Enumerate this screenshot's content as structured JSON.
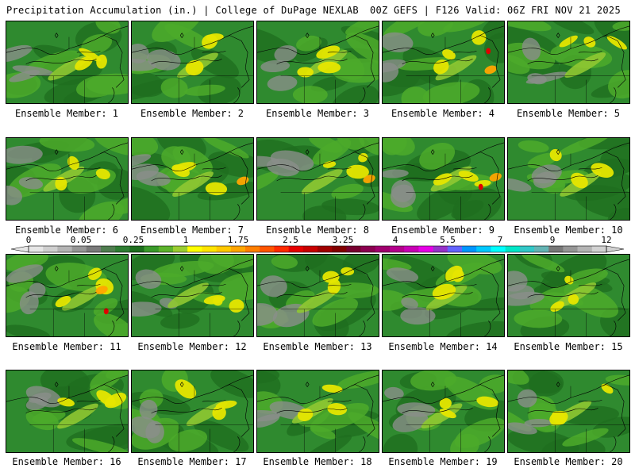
{
  "header": {
    "left_title": "Precipitation Accumulation (in.) | College of DuPage NEXLAB",
    "right_title": "00Z GEFS | F126 Valid: 06Z FRI NOV 21 2025"
  },
  "member_prefix": "Ensemble Member:",
  "members": [
    {
      "label": "Ensemble Member: 1"
    },
    {
      "label": "Ensemble Member: 2"
    },
    {
      "label": "Ensemble Member: 3"
    },
    {
      "label": "Ensemble Member: 4"
    },
    {
      "label": "Ensemble Member: 5"
    },
    {
      "label": "Ensemble Member: 6"
    },
    {
      "label": "Ensemble Member: 7"
    },
    {
      "label": "Ensemble Member: 8"
    },
    {
      "label": "Ensemble Member: 9"
    },
    {
      "label": "Ensemble Member: 10"
    },
    {
      "label": "Ensemble Member: 11"
    },
    {
      "label": "Ensemble Member: 12"
    },
    {
      "label": "Ensemble Member: 13"
    },
    {
      "label": "Ensemble Member: 14"
    },
    {
      "label": "Ensemble Member: 15"
    },
    {
      "label": "Ensemble Member: 16"
    },
    {
      "label": "Ensemble Member: 17"
    },
    {
      "label": "Ensemble Member: 18"
    },
    {
      "label": "Ensemble Member: 19"
    },
    {
      "label": "Ensemble Member: 20"
    }
  ],
  "colorbar": {
    "tick_labels": [
      "0",
      "0.05",
      "0.25",
      "1",
      "1.75",
      "2.5",
      "3.25",
      "4",
      "5.5",
      "7",
      "9",
      "12"
    ],
    "colors": [
      "#e6e6e6",
      "#cfcfcf",
      "#b4b4b4",
      "#969696",
      "#7a7a7a",
      "#4f7d4f",
      "#2e7d32",
      "#1e6e1e",
      "#3a9a2a",
      "#5cb32c",
      "#9acd32",
      "#ffff00",
      "#ffe400",
      "#ffc800",
      "#ffa500",
      "#ff7f00",
      "#ff5500",
      "#ff2a00",
      "#e60000",
      "#c80000",
      "#a00000",
      "#820000",
      "#780030",
      "#8b0050",
      "#a0006e",
      "#b4008c",
      "#c800b4",
      "#e600e6",
      "#9632c8",
      "#6464ff",
      "#0096ff",
      "#00c8ff",
      "#00ffff",
      "#00e6c8",
      "#32c8c8",
      "#64b4b4",
      "#787878",
      "#969696",
      "#b4b4b4",
      "#d2d2d2"
    ]
  }
}
